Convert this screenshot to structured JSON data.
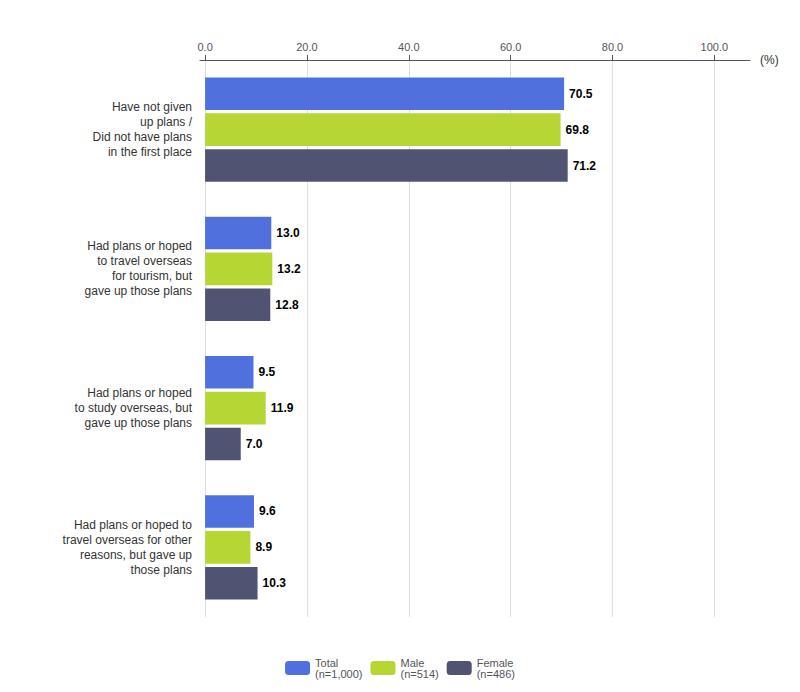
{
  "chart_data": {
    "type": "bar",
    "orientation": "horizontal",
    "categories": [
      "Have not given\nup plans /\nDid not have plans\nin the first place",
      "Had plans or hoped\nto travel overseas\nfor tourism, but\ngave up those plans",
      "Had plans or hoped\nto study overseas, but\ngave up those plans",
      "Had plans or hoped to\ntravel overseas for other\nreasons, but gave up\nthose plans"
    ],
    "series": [
      {
        "name": "Total\n(n=1,000)",
        "values": [
          70.5,
          13.0,
          9.5,
          9.6
        ],
        "value_labels": [
          "70.5",
          "13.0",
          "9.5",
          "9.6"
        ]
      },
      {
        "name": "Male\n(n=514)",
        "values": [
          69.8,
          13.2,
          11.9,
          8.9
        ],
        "value_labels": [
          "69.8",
          "13.2",
          "11.9",
          "8.9"
        ]
      },
      {
        "name": "Female\n(n=486)",
        "values": [
          71.2,
          12.8,
          7.0,
          10.3
        ],
        "value_labels": [
          "71.2",
          "12.8",
          "7.0",
          "10.3"
        ]
      }
    ],
    "xlabel": "(%)",
    "xlim": [
      -1,
      107
    ],
    "xticks": [
      {
        "value": 0,
        "label": "0.0"
      },
      {
        "value": 20,
        "label": "20.0"
      },
      {
        "value": 40,
        "label": "40.0"
      },
      {
        "value": 60,
        "label": "60.0"
      },
      {
        "value": 80,
        "label": "80.0"
      },
      {
        "value": 100,
        "label": "100.0"
      }
    ],
    "grid": true,
    "data_labels": true,
    "legend": "bottom"
  }
}
